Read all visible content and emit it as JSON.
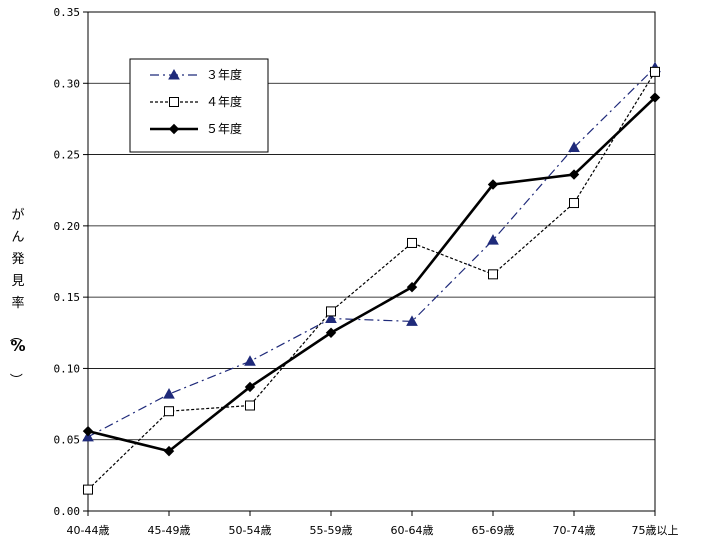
{
  "chart_data": {
    "type": "line",
    "ylabel": "がん発見率（%）",
    "categories": [
      "40-44歳",
      "45-49歳",
      "50-54歳",
      "55-59歳",
      "60-64歳",
      "65-69歳",
      "70-74歳",
      "75歳以上"
    ],
    "ylim": [
      0,
      0.35
    ],
    "yticks": [
      "0.00",
      "0.05",
      "0.10",
      "0.15",
      "0.20",
      "0.25",
      "0.30",
      "0.35"
    ],
    "grid": true,
    "legend_position": "top-left",
    "series": [
      {
        "name": "３年度",
        "color": "#1f2a7a",
        "marker": "triangle",
        "line": "dash-dot",
        "values": [
          0.052,
          0.082,
          0.105,
          0.135,
          0.133,
          0.19,
          0.255,
          0.311
        ]
      },
      {
        "name": "４年度",
        "color": "#000000",
        "marker": "square-open",
        "line": "dotted",
        "values": [
          0.015,
          0.07,
          0.074,
          0.14,
          0.188,
          0.166,
          0.216,
          0.308
        ]
      },
      {
        "name": "５年度",
        "color": "#000000",
        "marker": "diamond",
        "line": "solid-thick",
        "values": [
          0.056,
          0.042,
          0.087,
          0.125,
          0.157,
          0.229,
          0.236,
          0.29
        ]
      }
    ]
  }
}
